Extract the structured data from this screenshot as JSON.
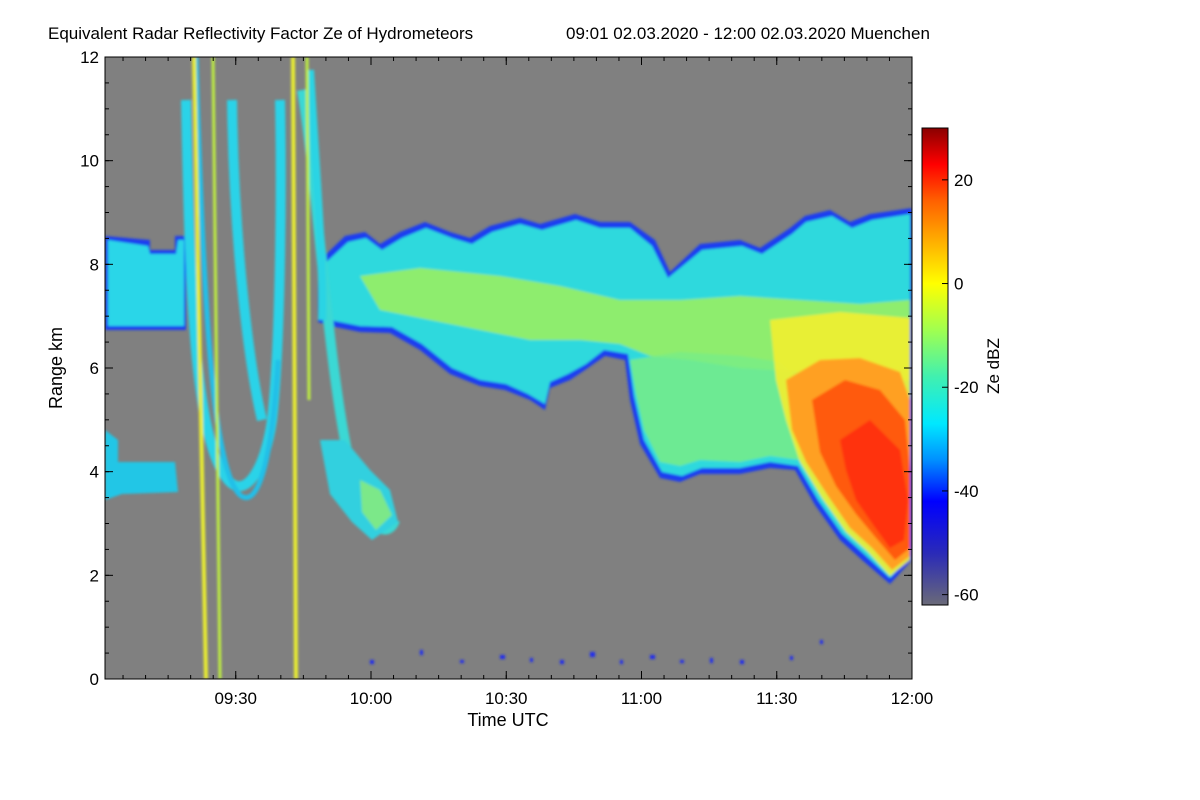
{
  "chart_data": {
    "type": "heatmap",
    "title": "Equivalent Radar Reflectivity Factor Ze of Hydrometeors",
    "subtitle": "09:01 02.03.2020 - 12:00 02.03.2020 Muenchen",
    "xlabel": "Time UTC",
    "ylabel": "Range km",
    "xlim_minutes": [
      541,
      720
    ],
    "ylim": [
      0,
      12
    ],
    "x_ticks": [
      {
        "label": "09:30",
        "minutes": 570
      },
      {
        "label": "10:00",
        "minutes": 600
      },
      {
        "label": "10:30",
        "minutes": 630
      },
      {
        "label": "11:00",
        "minutes": 660
      },
      {
        "label": "11:30",
        "minutes": 690
      },
      {
        "label": "12:00",
        "minutes": 720
      }
    ],
    "y_ticks": [
      0,
      2,
      4,
      6,
      8,
      10,
      12
    ],
    "colorbar": {
      "label": "Ze dBZ",
      "range": [
        -62,
        30
      ],
      "ticks": [
        20,
        0,
        -20,
        -40,
        -60
      ],
      "background_color": "#808080",
      "stops": [
        {
          "value": -62,
          "color": "#6a6a78"
        },
        {
          "value": -52,
          "color": "#2a2ab8"
        },
        {
          "value": -42,
          "color": "#0000ff"
        },
        {
          "value": -34,
          "color": "#0090ff"
        },
        {
          "value": -27,
          "color": "#00e8ff"
        },
        {
          "value": -18,
          "color": "#40f0b0"
        },
        {
          "value": -9,
          "color": "#a0ff50"
        },
        {
          "value": 0,
          "color": "#ffff00"
        },
        {
          "value": 8,
          "color": "#ffb000"
        },
        {
          "value": 16,
          "color": "#ff6000"
        },
        {
          "value": 23,
          "color": "#ff0000"
        },
        {
          "value": 30,
          "color": "#8a0000"
        }
      ]
    },
    "echo_regions": [
      {
        "name": "upper-cloud-layer",
        "minutes": [
          541,
          720
        ],
        "range_km": [
          6.6,
          9.0
        ],
        "typical_dbz": -18
      },
      {
        "name": "low-cloud-layer-early",
        "minutes": [
          541,
          548
        ],
        "range_km": [
          3.4,
          4.2
        ],
        "typical_dbz": -22
      },
      {
        "name": "fallstreak-arch-1",
        "minutes": [
          553,
          574
        ],
        "range_km": [
          3.4,
          12
        ],
        "typical_dbz": -25
      },
      {
        "name": "fallstreak-arch-2",
        "minutes": [
          568,
          591
        ],
        "range_km": [
          2.6,
          12
        ],
        "typical_dbz": -25
      },
      {
        "name": "precipitation-shaft",
        "minutes": [
          652,
          720
        ],
        "range_km": [
          1.6,
          6.4
        ],
        "typical_dbz": -10
      },
      {
        "name": "strong-precipitation-core",
        "minutes": [
          690,
          720
        ],
        "range_km": [
          1.8,
          6.0
        ],
        "typical_dbz": 12
      }
    ]
  }
}
